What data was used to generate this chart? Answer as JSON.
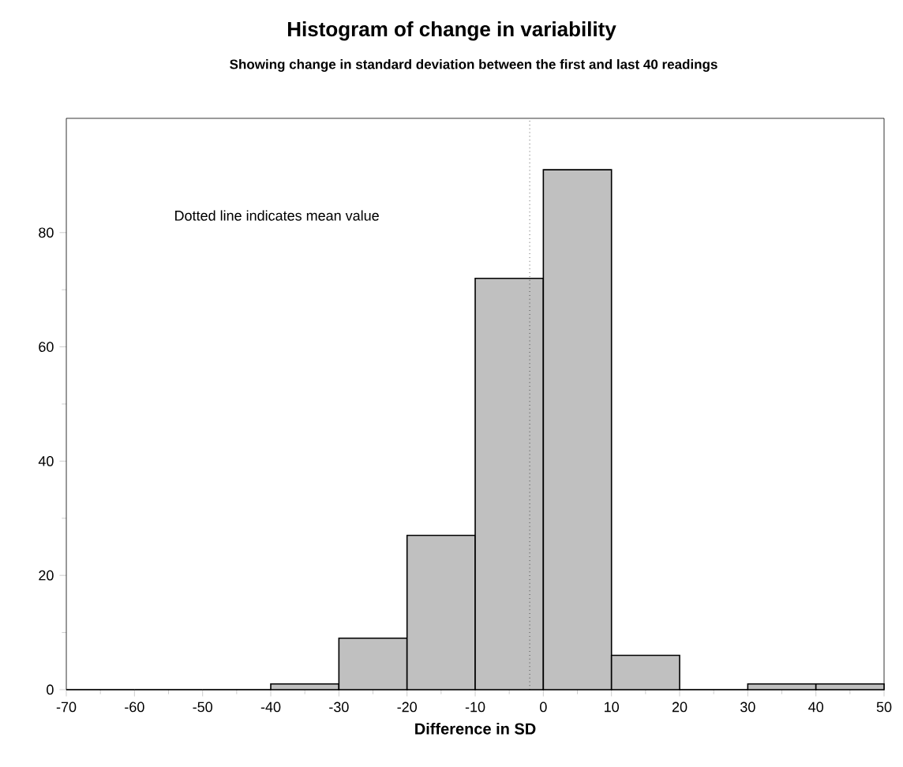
{
  "chart_data": {
    "type": "histogram",
    "title": "Histogram of change in variability",
    "subtitle": "Showing change  in standard  deviation between the first and last 40 readings",
    "xlabel": "Difference in SD",
    "bins": [
      -70,
      -60,
      -50,
      -40,
      -30,
      -20,
      -10,
      0,
      10,
      20,
      30,
      40,
      50
    ],
    "values": [
      0,
      0,
      0,
      1,
      9,
      27,
      72,
      91,
      6,
      0,
      1,
      1
    ],
    "color": "#c0c0c0",
    "xlim": [
      -70,
      50
    ],
    "ylim": [
      0,
      100
    ],
    "xticks": [
      -70,
      -60,
      -50,
      -40,
      -30,
      -20,
      -10,
      0,
      10,
      20,
      30,
      40,
      50
    ],
    "yticks": [
      0,
      20,
      40,
      60,
      80
    ],
    "ref_lines": [
      {
        "axis": "x",
        "value": -2,
        "line_style": "dotted"
      }
    ],
    "annotations": [
      "Dotted line indicates mean value"
    ],
    "grid": false
  }
}
